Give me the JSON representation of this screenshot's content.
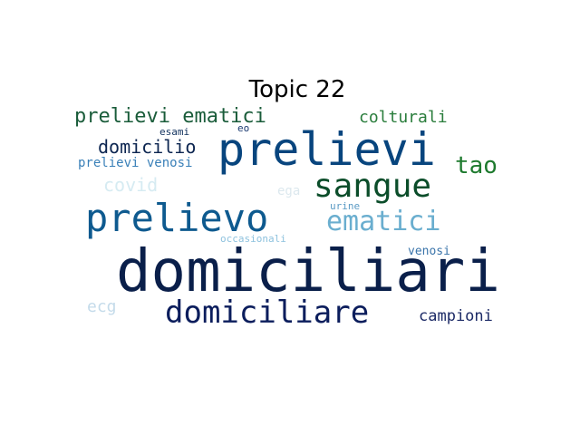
{
  "title": "Topic 22",
  "words": [
    {
      "text": "domiciliari",
      "color": "#0a1f4a"
    },
    {
      "text": "prelievi",
      "color": "#08457e"
    },
    {
      "text": "prelievo",
      "color": "#0e5a8f"
    },
    {
      "text": "sangue",
      "color": "#0b4d2a"
    },
    {
      "text": "domiciliare",
      "color": "#0b1d5c"
    },
    {
      "text": "ematici",
      "color": "#6aaecf"
    },
    {
      "text": "prelievi ematici",
      "color": "#1a5c3a"
    },
    {
      "text": "tao",
      "color": "#1e7a2e"
    },
    {
      "text": "domicilio",
      "color": "#0c2550"
    },
    {
      "text": "colturali",
      "color": "#2a7d3c"
    },
    {
      "text": "covid",
      "color": "#d6ebf2"
    },
    {
      "text": "prelievi venosi",
      "color": "#3a80b8"
    },
    {
      "text": "campioni",
      "color": "#1c2a66"
    },
    {
      "text": "ecg",
      "color": "#c4dbea"
    },
    {
      "text": "venosi",
      "color": "#3a74aa"
    },
    {
      "text": "esami",
      "color": "#12325e"
    },
    {
      "text": "eo",
      "color": "#1a3a70"
    },
    {
      "text": "ega",
      "color": "#dce8ee"
    },
    {
      "text": "urine",
      "color": "#5a9ac4"
    },
    {
      "text": "occasionali",
      "color": "#8ec2de"
    }
  ]
}
